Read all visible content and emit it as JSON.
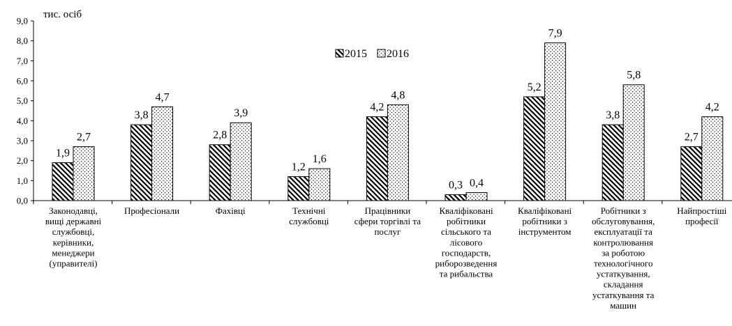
{
  "chart_data": {
    "type": "bar",
    "unit_label": "тис. осіб",
    "ylim": [
      0,
      9
    ],
    "y_ticks": [
      "0,0",
      "1,0",
      "2,0",
      "3,0",
      "4,0",
      "5,0",
      "6,0",
      "7,0",
      "8,0",
      "9,0"
    ],
    "grid": false,
    "legend_position": "top-center",
    "categories": [
      [
        "Законодавці,",
        "вищі державні",
        "службовці,",
        "керівники,",
        "менеджери",
        "(управителі)"
      ],
      [
        "Професіонали"
      ],
      [
        "Фахівці"
      ],
      [
        "Технічні",
        "службовці"
      ],
      [
        "Працівники",
        "сфери торгівлі та",
        "послуг"
      ],
      [
        "Кваліфіковані",
        "робітники",
        "сільського та",
        "лісового",
        "господарств,",
        "риборозведення",
        "та рибальства"
      ],
      [
        "Кваліфіковані",
        "робітники з",
        "інструментом"
      ],
      [
        "Робітники з",
        "обслуговування,",
        "експлуатації та",
        "контролювання",
        "за роботою",
        "технологічного",
        "устаткування,",
        "складання",
        "устаткування та",
        "машин"
      ],
      [
        "Найпростіші",
        "професії"
      ]
    ],
    "series": [
      {
        "name": "2015",
        "pattern": "diagonal-hatch",
        "values": [
          1.9,
          3.8,
          2.8,
          1.2,
          4.2,
          0.3,
          5.2,
          3.8,
          2.7
        ],
        "labels": [
          "1,9",
          "3,8",
          "2,8",
          "1,2",
          "4,2",
          "0,3",
          "5,2",
          "3,8",
          "2,7"
        ]
      },
      {
        "name": "2016",
        "pattern": "dots",
        "values": [
          2.7,
          4.7,
          3.9,
          1.6,
          4.8,
          0.4,
          7.9,
          5.8,
          4.2
        ],
        "labels": [
          "2,7",
          "4,7",
          "3,9",
          "1,6",
          "4,8",
          "0,4",
          "7,9",
          "5,8",
          "4,2"
        ]
      }
    ]
  }
}
